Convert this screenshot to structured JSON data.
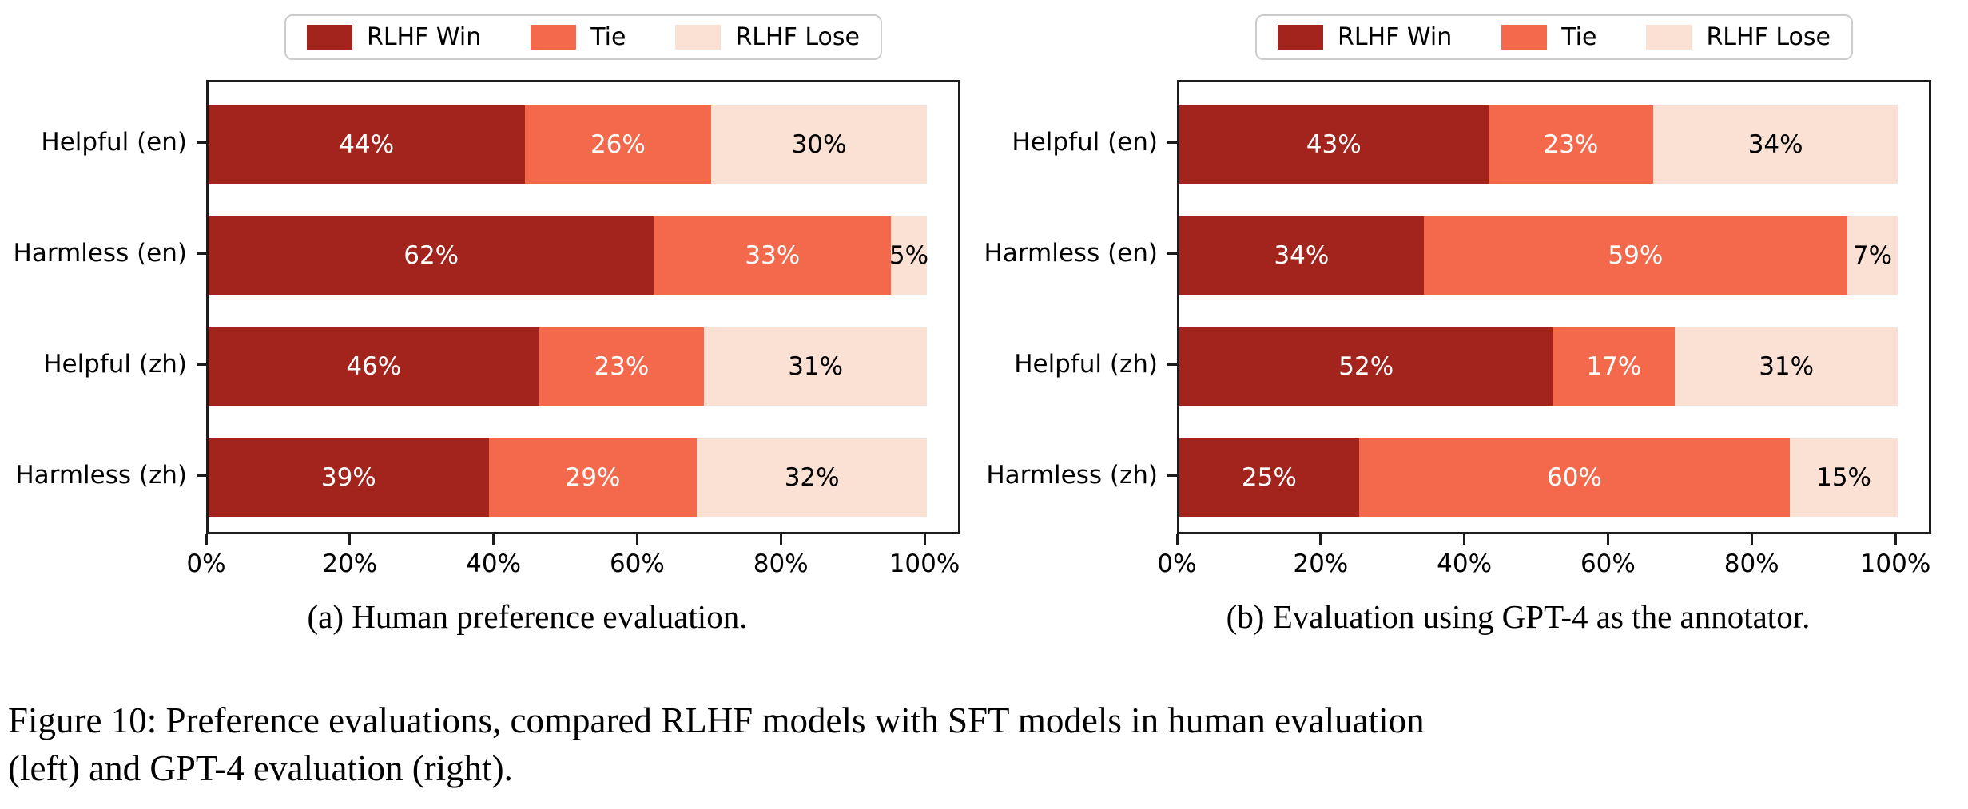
{
  "figure": {
    "caption_lines": [
      "Figure 10: Preference evaluations, compared RLHF models with SFT models in human evaluation",
      "(left) and GPT-4 evaluation (right)."
    ]
  },
  "colors": {
    "win": "#A3241C",
    "tie": "#F4694C",
    "lose": "#FBE0D4",
    "spine": "#1C1C1C",
    "legend_border": "#CCCCCC"
  },
  "chart_data": [
    {
      "type": "bar",
      "orientation": "horizontal",
      "stacked": true,
      "caption": "(a) Human preference evaluation.",
      "categories": [
        "Helpful (en)",
        "Harmless (en)",
        "Helpful (zh)",
        "Harmless (zh)"
      ],
      "series": [
        {
          "name": "RLHF Win",
          "color": "#A3241C",
          "label_color": "#FFFFFF",
          "values": [
            44,
            62,
            46,
            39
          ]
        },
        {
          "name": "Tie",
          "color": "#F4694C",
          "label_color": "#FFFFFF",
          "values": [
            26,
            33,
            23,
            29
          ]
        },
        {
          "name": "RLHF Lose",
          "color": "#FBE0D4",
          "label_color": "#000000",
          "values": [
            30,
            5,
            31,
            32
          ]
        }
      ],
      "value_suffix": "%",
      "xticks": [
        {
          "value": 0,
          "label": "0%"
        },
        {
          "value": 20,
          "label": "20%"
        },
        {
          "value": 40,
          "label": "40%"
        },
        {
          "value": 60,
          "label": "60%"
        },
        {
          "value": 80,
          "label": "80%"
        },
        {
          "value": 100,
          "label": "100%"
        }
      ],
      "xlim": [
        0,
        105
      ],
      "legend_position": "top",
      "grid": false
    },
    {
      "type": "bar",
      "orientation": "horizontal",
      "stacked": true,
      "caption": "(b) Evaluation using GPT-4 as the annotator.",
      "categories": [
        "Helpful (en)",
        "Harmless (en)",
        "Helpful (zh)",
        "Harmless (zh)"
      ],
      "series": [
        {
          "name": "RLHF Win",
          "color": "#A3241C",
          "label_color": "#FFFFFF",
          "values": [
            43,
            34,
            52,
            25
          ]
        },
        {
          "name": "Tie",
          "color": "#F4694C",
          "label_color": "#FFFFFF",
          "values": [
            23,
            59,
            17,
            60
          ]
        },
        {
          "name": "RLHF Lose",
          "color": "#FBE0D4",
          "label_color": "#000000",
          "values": [
            34,
            7,
            31,
            15
          ]
        }
      ],
      "value_suffix": "%",
      "xticks": [
        {
          "value": 0,
          "label": "0%"
        },
        {
          "value": 20,
          "label": "20%"
        },
        {
          "value": 40,
          "label": "40%"
        },
        {
          "value": 60,
          "label": "60%"
        },
        {
          "value": 80,
          "label": "80%"
        },
        {
          "value": 100,
          "label": "100%"
        }
      ],
      "xlim": [
        0,
        105
      ],
      "legend_position": "top",
      "grid": false
    }
  ]
}
